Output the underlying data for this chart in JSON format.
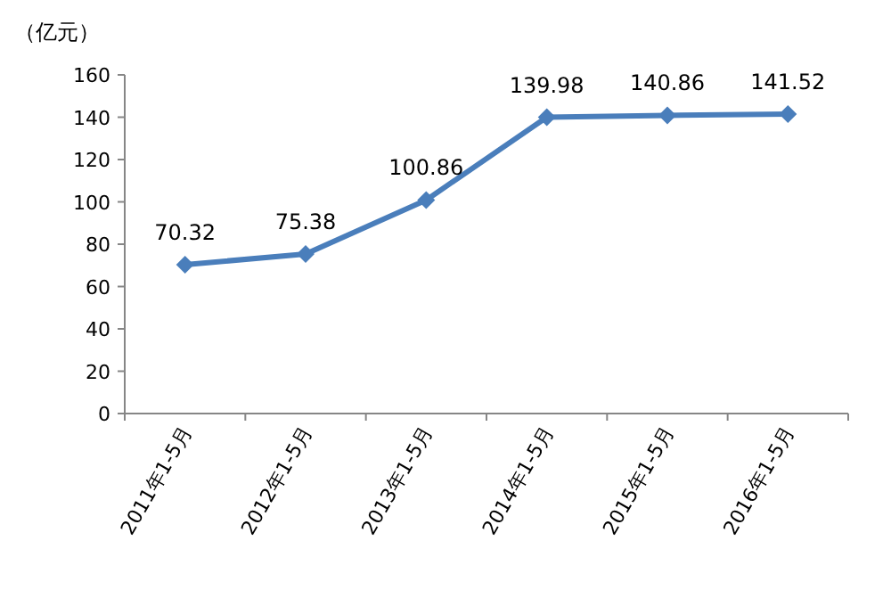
{
  "chart_data": {
    "type": "line",
    "ylabel": "（亿元）",
    "categories": [
      "2011年1-5月",
      "2012年1-5月",
      "2013年1-5月",
      "2014年1-5月",
      "2015年1-5月",
      "2016年1-5月"
    ],
    "values": [
      70.32,
      75.38,
      100.86,
      139.98,
      140.86,
      141.52
    ],
    "color": "#4a7ebb",
    "ylim": [
      0,
      160
    ],
    "yticks": [
      0,
      20,
      40,
      60,
      80,
      100,
      120,
      140,
      160
    ],
    "data_labels": true,
    "marker": "diamond"
  }
}
